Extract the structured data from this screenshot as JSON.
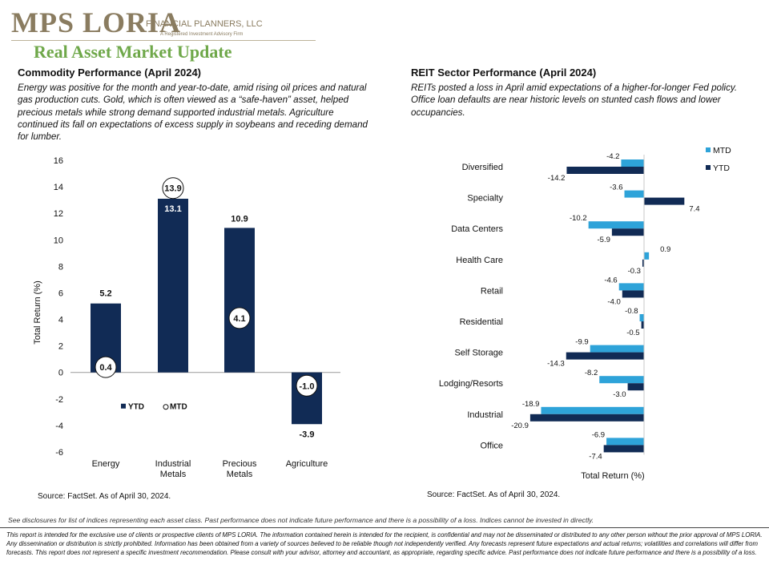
{
  "header": {
    "logo_text": "MPS LORIA",
    "logo_suffix": "FINANCIAL PLANNERS, LLC",
    "logo_tagline": "A Registered Investment Advisory Firm",
    "page_title": "Real Asset Market Update"
  },
  "colors": {
    "navy": "#112b55",
    "light_blue": "#2ea3d9",
    "title_green": "#6fa84a",
    "logo_gold": "#8a7c60"
  },
  "commodity": {
    "title": "Commodity  Performance (April 2024)",
    "body": "Energy was positive for the month and year-to-date,  amid rising oil prices and natural gas production cuts. Gold, which  is often viewed  as a “safe-haven” asset, helped precious metals while strong demand supported industrial metals. Agriculture continued its fall on expectations of excess supply in soybeans and receding demand  for lumber.",
    "source": "Source: FactSet. As of April 30, 2024."
  },
  "reit": {
    "title": "REIT Sector Performance (April 2024)",
    "body": "REITs posted a loss in April amid expectations of a higher-for-longer Fed policy. Office loan defaults are near historic levels on stunted cash flows and lower occupancies.",
    "source": "Source: FactSet. As of April 30, 2024."
  },
  "chart_data": [
    {
      "type": "bar",
      "categories": [
        "Energy",
        "Industrial Metals",
        "Precious Metals",
        "Agriculture"
      ],
      "category_lines": [
        [
          "Energy"
        ],
        [
          "Industrial",
          "Metals"
        ],
        [
          "Precious",
          "Metals"
        ],
        [
          "Agriculture"
        ]
      ],
      "series": [
        {
          "name": "YTD",
          "values": [
            5.2,
            13.1,
            10.9,
            -3.9
          ],
          "labels": [
            "5.2",
            "13.1",
            "10.9",
            "-3.9"
          ],
          "style": "bar"
        },
        {
          "name": "MTD",
          "values": [
            0.4,
            13.9,
            4.1,
            -1.0
          ],
          "labels": [
            "0.4",
            "13.9",
            "4.1",
            "-1.0"
          ],
          "style": "circle-marker"
        }
      ],
      "ylabel": "Total Return (%)",
      "ylim": [
        -6,
        16
      ],
      "yticks": [
        "-6",
        "-4",
        "-2",
        "0",
        "2",
        "4",
        "6",
        "8",
        "10",
        "12",
        "14",
        "16"
      ],
      "legend": [
        "YTD",
        "MTD"
      ],
      "grid": false
    },
    {
      "type": "bar",
      "orientation": "horizontal",
      "categories": [
        "Diversified",
        "Specialty",
        "Data Centers",
        "Health Care",
        "Retail",
        "Residential",
        "Self Storage",
        "Lodging/Resorts",
        "Industrial",
        "Office"
      ],
      "series": [
        {
          "name": "MTD",
          "values": [
            -4.2,
            -3.6,
            -10.2,
            0.9,
            -4.6,
            -0.8,
            -9.9,
            -8.2,
            -18.9,
            -6.9
          ],
          "labels": [
            "-4.2",
            "-3.6",
            "-10.2",
            "0.9",
            "-4.6",
            "-0.8",
            "-9.9",
            "-8.2",
            "-18.9",
            "-6.9"
          ]
        },
        {
          "name": "YTD",
          "values": [
            -14.2,
            7.4,
            -5.9,
            -0.3,
            -4.0,
            -0.5,
            -14.3,
            -3.0,
            -20.9,
            -7.4
          ],
          "labels": [
            "-14.2",
            "7.4",
            "-5.9",
            "-0.3",
            "-4.0",
            "-0.5",
            "-14.3",
            "-3.0",
            "-20.9",
            "-7.4"
          ]
        }
      ],
      "xlabel": "Total Return (%)",
      "legend": [
        "MTD",
        "YTD"
      ],
      "legend_position": "top-right",
      "grid": false
    }
  ],
  "footer": {
    "disclosure_note": "See disclosures for list of indices representing each asset class. Past performance does not indicate future performance and there is a possibility of a loss. Indices cannot be invested in directly.",
    "disclaimer": "This report is intended for the exclusive use of clients or prospective clients of MPS LORIA. The information contained herein is intended for the recipient, is confidential and may not be disseminated or distributed to any other person without the prior approval of MPS LORIA. Any dissemination or distribution is strictly prohibited. Information has been obtained from a variety of sources believed to be reliable though not independently verified. Any forecasts represent future expectations and actual returns; volatilities and correlations will differ from forecasts. This report does not represent a specific investment recommendation. Please consult with your advisor, attorney and accountant, as appropriate, regarding specific advice. Past performance does not indicate future performance and there is a possibility of a loss."
  }
}
